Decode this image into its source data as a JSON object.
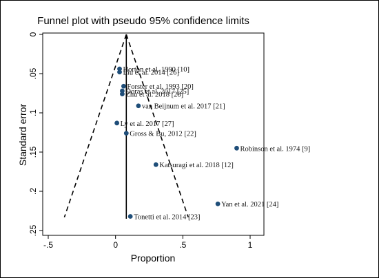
{
  "chart_data": {
    "type": "scatter",
    "title": "Funnel plot with pseudo 95% confidence limits",
    "xlabel": "Proportion",
    "ylabel": "Standard error",
    "xlim": [
      -0.5,
      1.0
    ],
    "ylim": [
      0,
      0.25
    ],
    "y_reversed": true,
    "x_ticks": [
      "-.5",
      "0",
      ".5",
      "1"
    ],
    "x_tick_values": [
      -0.5,
      0,
      0.5,
      1
    ],
    "y_ticks": [
      "0",
      ".05",
      ".1",
      ".15",
      ".2",
      ".25"
    ],
    "y_tick_values": [
      0,
      0.05,
      0.1,
      0.15,
      0.2,
      0.25
    ],
    "pooled_estimate": 0.08,
    "funnel_lines": [
      {
        "x": [
          0.08,
          -0.38
        ],
        "y": [
          0,
          0.233
        ]
      },
      {
        "x": [
          0.08,
          0.54
        ],
        "y": [
          0,
          0.233
        ]
      }
    ],
    "points": [
      {
        "label": "Horton et al. 1990 [10]",
        "x": 0.03,
        "y": 0.044
      },
      {
        "label": "Liu et al. 2014 [26]",
        "x": 0.03,
        "y": 0.048
      },
      {
        "label": "Forster et al. 1993 [20]",
        "x": 0.06,
        "y": 0.066
      },
      {
        "label": "Doras et al. 2017 [25]",
        "x": 0.05,
        "y": 0.072
      },
      {
        "label": "Zhu et al. 2018 [28]",
        "x": 0.05,
        "y": 0.076
      },
      {
        "label": "van Beijnum et al. 2017 [21]",
        "x": 0.17,
        "y": 0.091
      },
      {
        "label": "Ly et al. 2017 [27]",
        "x": 0.01,
        "y": 0.113
      },
      {
        "label": "Gross & Bu, 2012 [22]",
        "x": 0.08,
        "y": 0.126
      },
      {
        "label": "Robinson et al. 1974 [9]",
        "x": 0.9,
        "y": 0.145
      },
      {
        "label": "Katsuragi et al. 2018 [12]",
        "x": 0.3,
        "y": 0.166
      },
      {
        "label": "Yan et al. 2021 [24]",
        "x": 0.76,
        "y": 0.216
      },
      {
        "label": "Tonetti et al. 2014 [23]",
        "x": 0.11,
        "y": 0.232
      }
    ],
    "colors": {
      "point": "#1f4e79",
      "line": "#000000"
    }
  }
}
